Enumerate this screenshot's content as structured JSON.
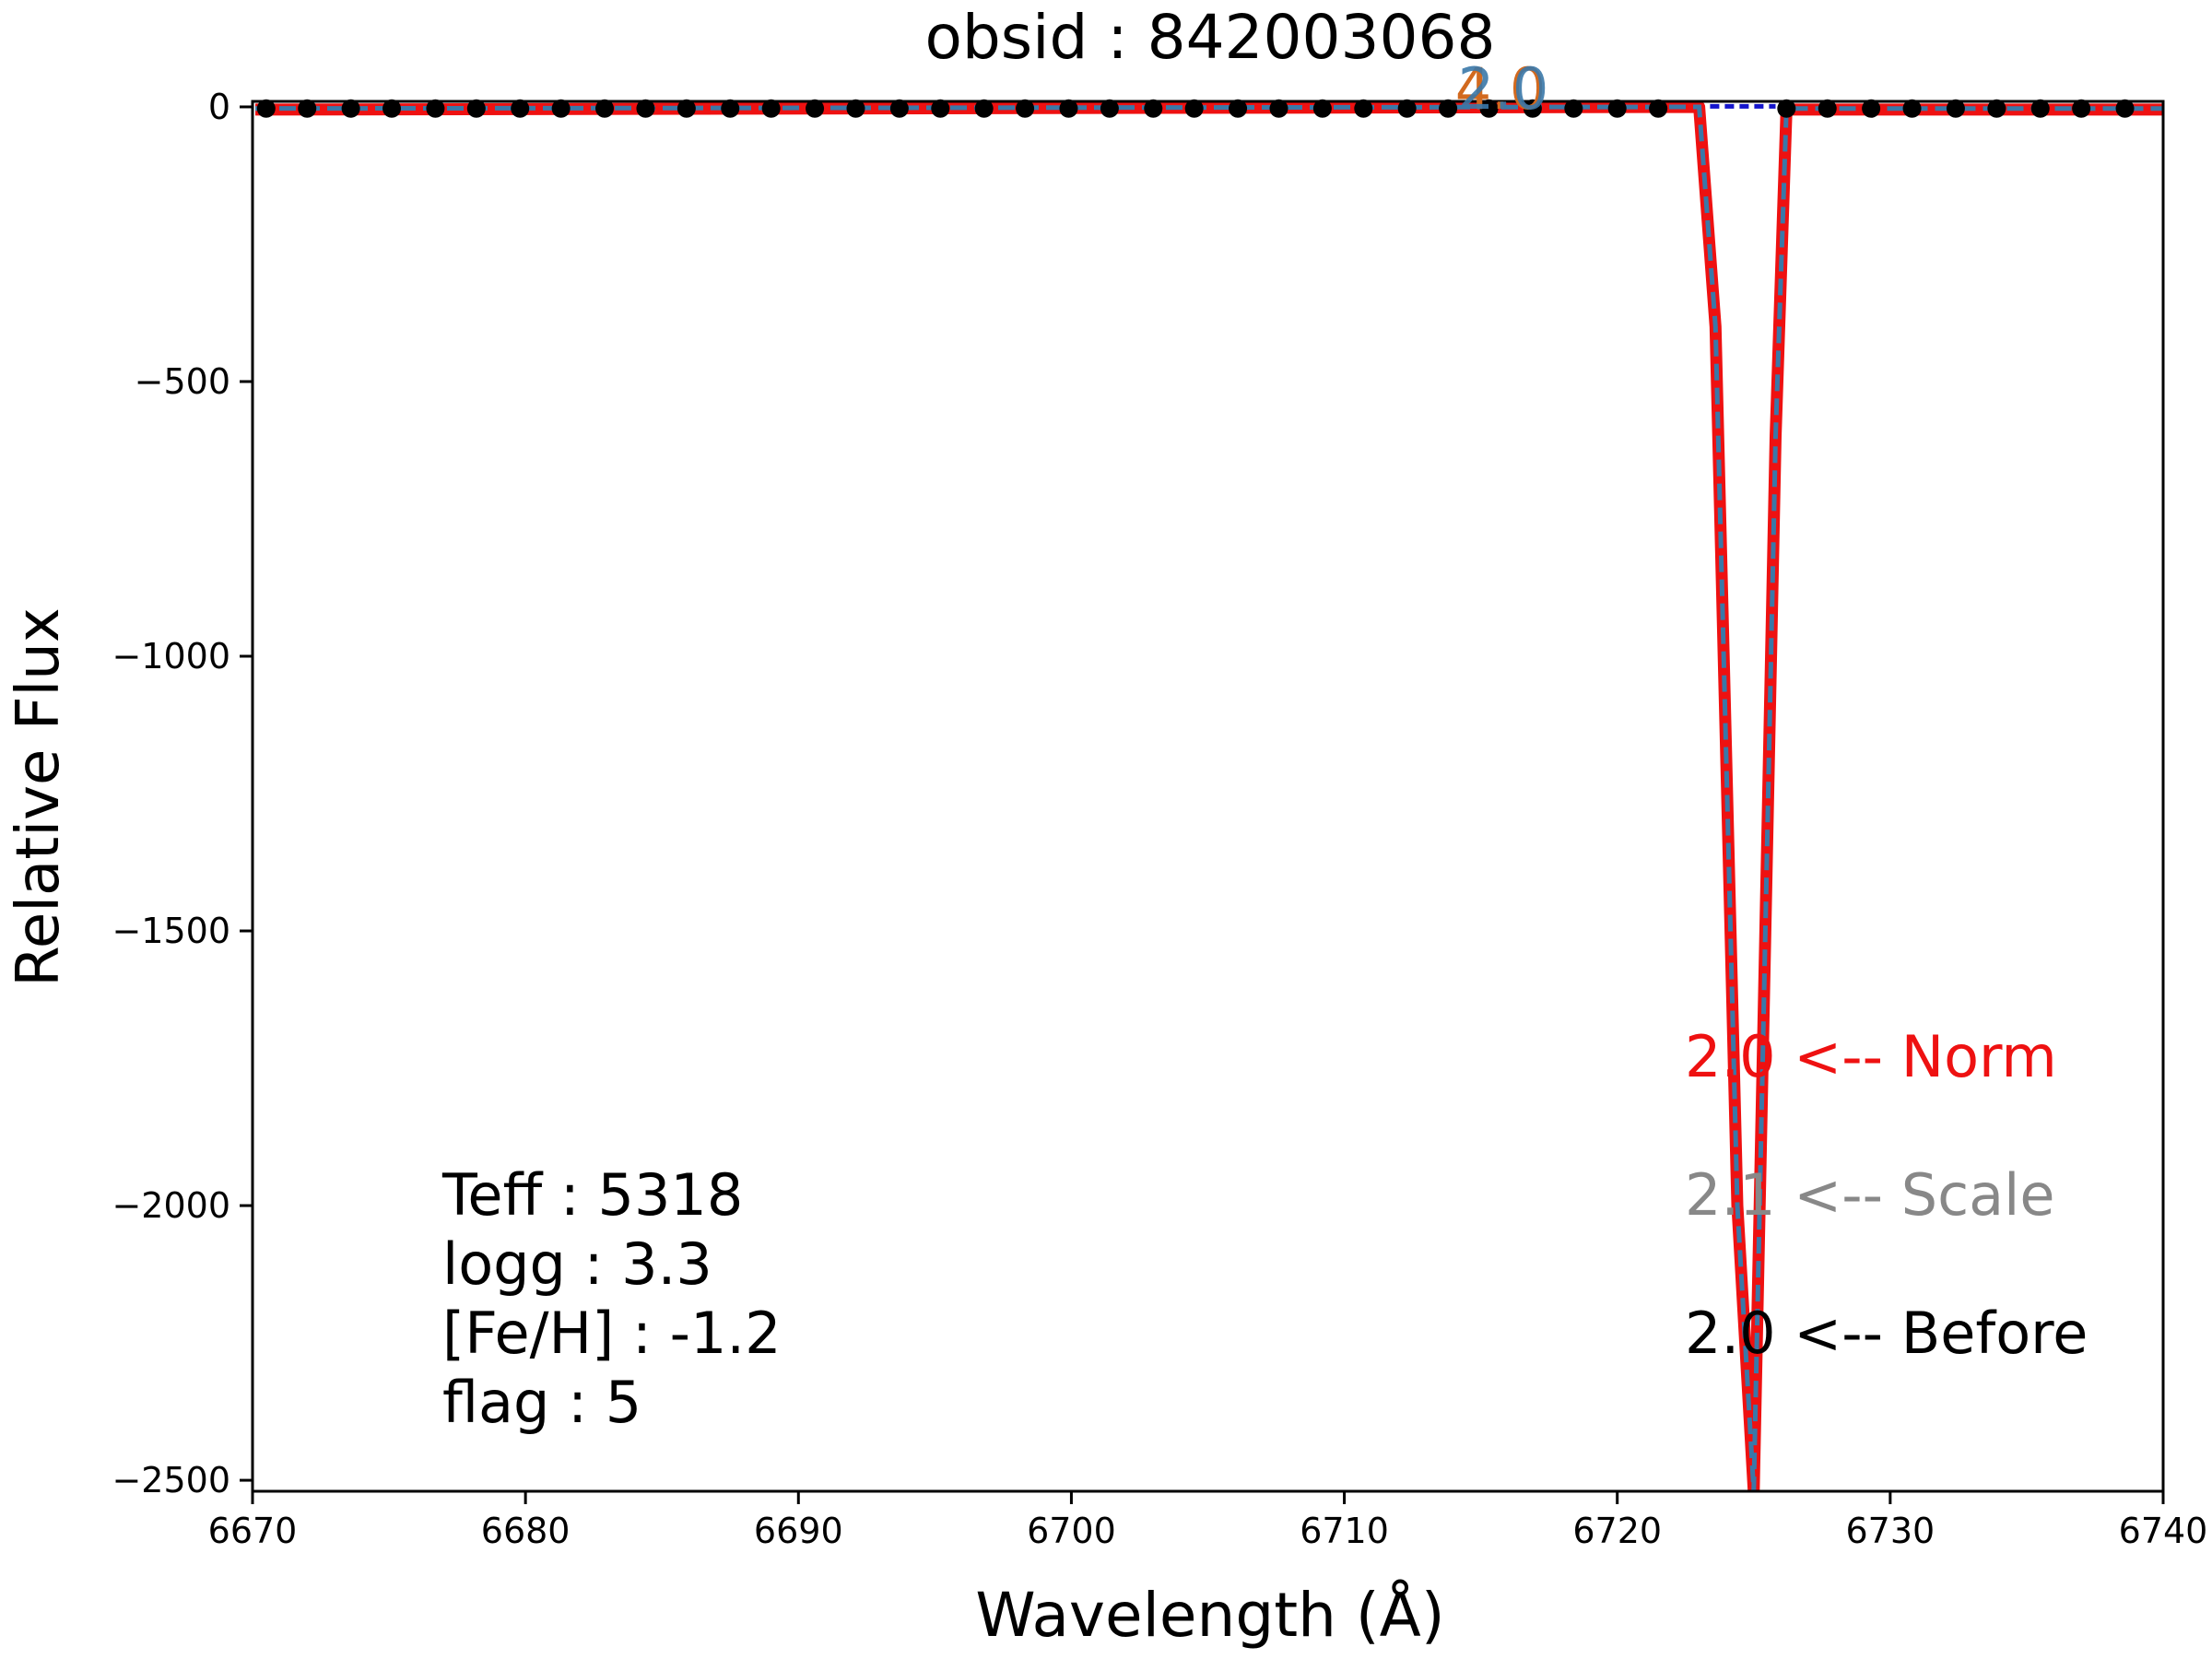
{
  "chart_data": {
    "type": "line",
    "title": "obsid : 842003068",
    "xlabel": "Wavelength (Å)",
    "ylabel": "Relative Flux",
    "xlim": [
      6670,
      6740
    ],
    "ylim": [
      -2520,
      10
    ],
    "xticks": [
      6670,
      6680,
      6690,
      6700,
      6710,
      6720,
      6730,
      6740
    ],
    "xtick_labels": [
      "6670",
      "6680",
      "6690",
      "6700",
      "6710",
      "6720",
      "6730",
      "6740"
    ],
    "yticks": [
      0,
      -500,
      -1000,
      -1500,
      -2000,
      -2500
    ],
    "ytick_labels": [
      "0",
      "−500",
      "−1000",
      "−1500",
      "−2000",
      "−2500"
    ],
    "grid": false,
    "colors": {
      "norm": "#ee1111",
      "scale": "#888888",
      "before": "#000000",
      "model": "#3a78a8",
      "fit": "#1515cc",
      "overlap_label": "#d2691e"
    },
    "series": [
      {
        "style": "norm",
        "x": [
          6670.1,
          6723.0,
          6723.6,
          6724.4,
          6725.0,
          6725.3,
          6725.8,
          6726.2,
          6740
        ],
        "y": [
          -5,
          0,
          -400,
          -2000,
          -2520,
          -1800,
          -600,
          -5,
          -5
        ]
      },
      {
        "style": "model",
        "x": [
          6670.1,
          6723.0,
          6723.6,
          6724.4,
          6725.0,
          6725.3,
          6725.8,
          6726.2,
          6740
        ],
        "y": [
          -3,
          0,
          -400,
          -2000,
          -2520,
          -1800,
          -600,
          -3,
          -3
        ]
      },
      {
        "style": "fit",
        "x": [
          6723.4,
          6725.8
        ],
        "y": [
          1,
          1
        ]
      },
      {
        "style": "before",
        "x": [
          6670.5,
          6672.0,
          6673.6,
          6675.1,
          6676.7,
          6678.2,
          6679.8,
          6681.3,
          6682.9,
          6684.4,
          6685.9,
          6687.5,
          6689.0,
          6690.6,
          6692.1,
          6693.7,
          6695.2,
          6696.8,
          6698.3,
          6699.9,
          6701.4,
          6703.0,
          6704.5,
          6706.1,
          6707.6,
          6709.2,
          6710.7,
          6712.3,
          6713.8,
          6715.3,
          6716.9,
          6718.4,
          6720.0,
          6721.5,
          6726.2,
          6727.7,
          6729.3,
          6730.8,
          6732.4,
          6733.9,
          6735.5,
          6737.0,
          6738.6
        ],
        "y": [
          -3,
          -3,
          -3,
          -3,
          -3,
          -3,
          -3,
          -3,
          -3,
          -3,
          -3,
          -3,
          -3,
          -3,
          -3,
          -3,
          -3,
          -3,
          -3,
          -3,
          -3,
          -3,
          -3,
          -3,
          -3,
          -3,
          -3,
          -3,
          -3,
          -3,
          -3,
          -3,
          -3,
          -3,
          -3,
          -3,
          -3,
          -3,
          -3,
          -3,
          -3,
          -3,
          -3
        ]
      }
    ],
    "peak_labels": [
      "4.0",
      "2.0"
    ],
    "annotations": {
      "params": [
        "Teff : 5318",
        "logg : 3.3",
        "[Fe/H] : -1.2",
        "flag : 5"
      ],
      "norm": "2.0 <-- Norm",
      "scale": "2.1 <-- Scale",
      "before": "2.0 <-- Before"
    }
  }
}
